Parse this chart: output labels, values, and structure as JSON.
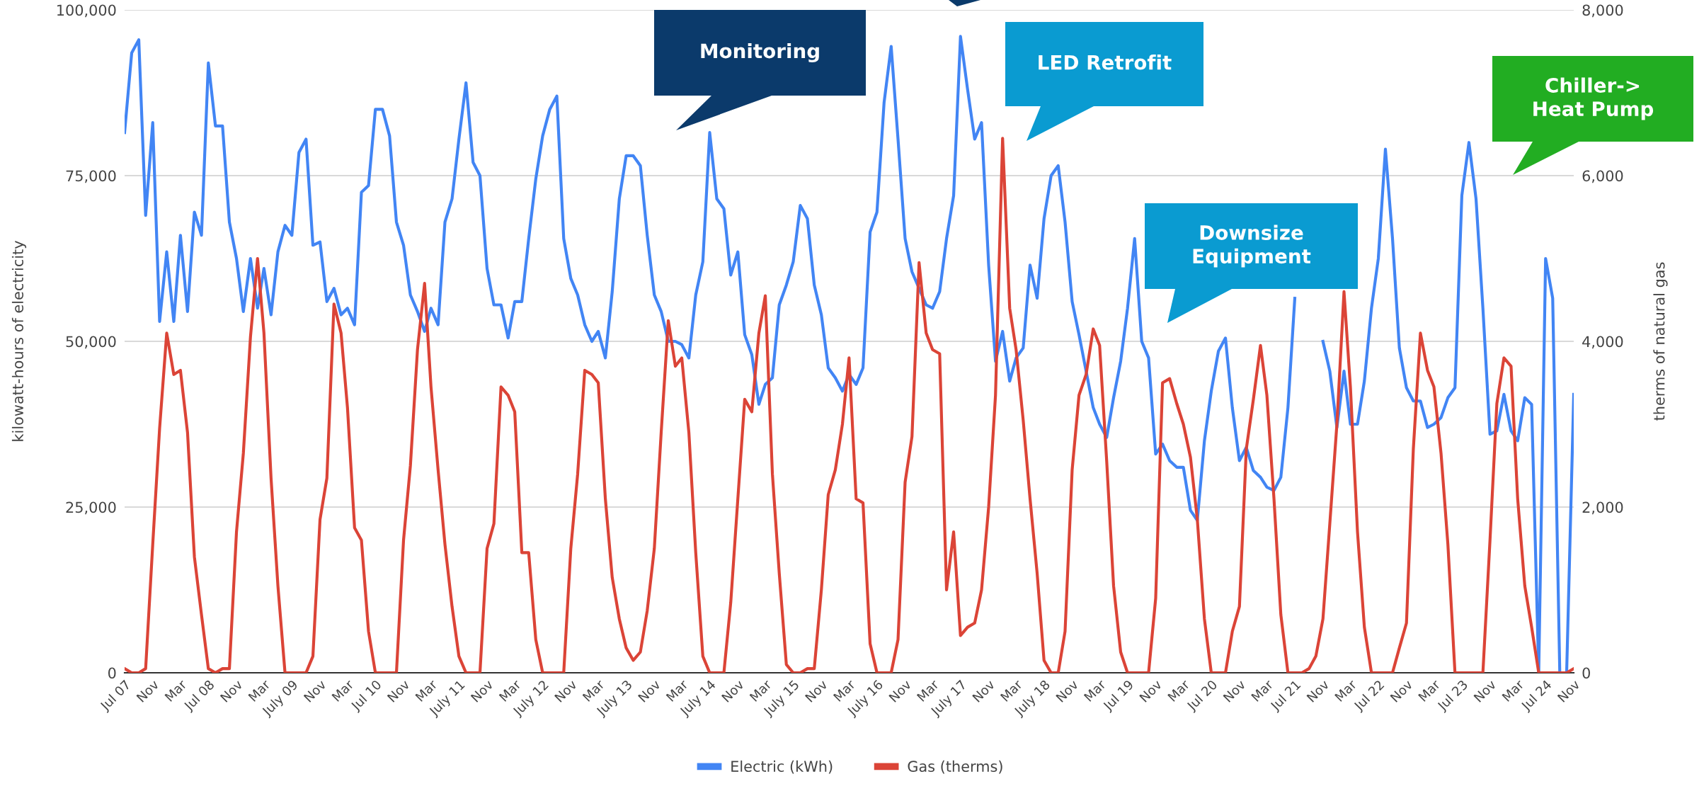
{
  "chart_data": {
    "type": "line",
    "xlabel": null,
    "ylabel": "kilowatt-hours of electricity",
    "y2label": "therms of natural gas",
    "x": [
      "2007-07",
      "2007-08",
      "2007-09",
      "2007-10",
      "2007-11",
      "2007-12",
      "2008-01",
      "2008-02",
      "2008-03",
      "2008-04",
      "2008-05",
      "2008-06",
      "2008-07",
      "2008-08",
      "2008-09",
      "2008-10",
      "2008-11",
      "2008-12",
      "2009-01",
      "2009-02",
      "2009-03",
      "2009-04",
      "2009-05",
      "2009-06",
      "2009-07",
      "2009-08",
      "2009-09",
      "2009-10",
      "2009-11",
      "2009-12",
      "2010-01",
      "2010-02",
      "2010-03",
      "2010-04",
      "2010-05",
      "2010-06",
      "2010-07",
      "2010-08",
      "2010-09",
      "2010-10",
      "2010-11",
      "2010-12",
      "2011-01",
      "2011-02",
      "2011-03",
      "2011-04",
      "2011-05",
      "2011-06",
      "2011-07",
      "2011-08",
      "2011-09",
      "2011-10",
      "2011-11",
      "2011-12",
      "2012-01",
      "2012-02",
      "2012-03",
      "2012-04",
      "2012-05",
      "2012-06",
      "2012-07",
      "2012-08",
      "2012-09",
      "2012-10",
      "2012-11",
      "2012-12",
      "2013-01",
      "2013-02",
      "2013-03",
      "2013-04",
      "2013-05",
      "2013-06",
      "2013-07",
      "2013-08",
      "2013-09",
      "2013-10",
      "2013-11",
      "2013-12",
      "2014-01",
      "2014-02",
      "2014-03",
      "2014-04",
      "2014-05",
      "2014-06",
      "2014-07",
      "2014-08",
      "2014-09",
      "2014-10",
      "2014-11",
      "2014-12",
      "2015-01",
      "2015-02",
      "2015-03",
      "2015-04",
      "2015-05",
      "2015-06",
      "2015-07",
      "2015-08",
      "2015-09",
      "2015-10",
      "2015-11",
      "2015-12",
      "2016-01",
      "2016-02",
      "2016-03",
      "2016-04",
      "2016-05",
      "2016-06",
      "2016-07",
      "2016-08",
      "2016-09",
      "2016-10",
      "2016-11",
      "2016-12",
      "2017-01",
      "2017-02",
      "2017-03",
      "2017-04",
      "2017-05",
      "2017-06",
      "2017-07",
      "2017-08",
      "2017-09",
      "2017-10",
      "2017-11",
      "2017-12",
      "2018-01",
      "2018-02",
      "2018-03",
      "2018-04",
      "2018-05",
      "2018-06",
      "2018-07",
      "2018-08",
      "2018-09",
      "2018-10",
      "2018-11",
      "2018-12",
      "2019-01",
      "2019-02",
      "2019-03",
      "2019-04",
      "2019-05",
      "2019-06",
      "2019-07",
      "2019-08",
      "2019-09",
      "2019-10",
      "2019-11",
      "2019-12",
      "2020-01",
      "2020-02",
      "2020-03",
      "2020-04",
      "2020-05",
      "2020-06",
      "2020-07",
      "2020-08",
      "2020-09",
      "2020-10",
      "2020-11",
      "2020-12",
      "2021-01",
      "2021-02",
      "2021-03",
      "2021-04",
      "2021-05",
      "2021-06",
      "2021-07",
      "2021-08",
      "2021-09",
      "2021-10",
      "2021-11",
      "2021-12",
      "2022-01",
      "2022-02",
      "2022-03",
      "2022-04",
      "2022-05",
      "2022-06",
      "2022-07",
      "2022-08",
      "2022-09",
      "2022-10",
      "2022-11",
      "2022-12",
      "2023-01",
      "2023-02",
      "2023-03",
      "2023-04",
      "2023-05",
      "2023-06",
      "2023-07",
      "2023-08",
      "2023-09",
      "2023-10",
      "2023-11",
      "2023-12",
      "2024-01",
      "2024-02",
      "2024-03",
      "2024-04",
      "2024-05",
      "2024-06",
      "2024-07",
      "2024-08",
      "2024-09",
      "2024-10",
      "2024-11"
    ],
    "series": [
      {
        "name": "Electric (kWh)",
        "color": "#4285f4",
        "axis": "y",
        "values": [
          81500,
          93500,
          95500,
          69000,
          83000,
          53000,
          63500,
          53000,
          66000,
          54500,
          69500,
          66000,
          92000,
          82500,
          82500,
          68000,
          62500,
          54500,
          62500,
          55000,
          61000,
          54000,
          63500,
          67500,
          66000,
          78500,
          80500,
          64500,
          65000,
          56000,
          58000,
          54000,
          55000,
          52500,
          72500,
          73500,
          85000,
          85000,
          81000,
          68000,
          64500,
          57000,
          54500,
          51500,
          55000,
          52500,
          68000,
          71500,
          80500,
          89000,
          77000,
          75000,
          61000,
          55500,
          55500,
          50500,
          56000,
          56000,
          65500,
          74500,
          81000,
          85000,
          87000,
          65500,
          59500,
          57000,
          52500,
          50000,
          51500,
          47500,
          57500,
          71500,
          78000,
          78000,
          76500,
          66000,
          57000,
          54500,
          50000,
          50000,
          49500,
          47500,
          57000,
          62000,
          81500,
          71500,
          70000,
          60000,
          63500,
          51000,
          48000,
          40500,
          43500,
          44500,
          55500,
          58500,
          62000,
          70500,
          68500,
          58500,
          54000,
          46000,
          44500,
          42500,
          45000,
          43500,
          46000,
          66500,
          69500,
          86000,
          94500,
          80500,
          65500,
          60500,
          58000,
          55500,
          55000,
          57500,
          65500,
          72000,
          96000,
          88000,
          80500,
          83000,
          61500,
          47000,
          51500,
          44000,
          47500,
          49000,
          61500,
          56500,
          68500,
          75000,
          76500,
          68000,
          56000,
          51000,
          45500,
          40000,
          37500,
          35500,
          41500,
          47000,
          55000,
          65500,
          50000,
          47500,
          33000,
          34500,
          32000,
          31000,
          31000,
          24500,
          23000,
          35000,
          42500,
          48500,
          50500,
          40000,
          32000,
          34000,
          30500,
          29500,
          28000,
          27500,
          29500,
          40000,
          56500,
          null,
          null,
          null,
          50000,
          45500,
          37000,
          45500,
          37500,
          37500,
          44000,
          55000,
          62500,
          79000,
          65500,
          49000,
          43000,
          41000,
          41000,
          37000,
          37500,
          38500,
          41500,
          43000,
          72000,
          80000,
          71500,
          55000,
          36000,
          36500,
          42000,
          36500,
          35000,
          41500,
          40500,
          0,
          62500,
          56500,
          0,
          0,
          42000
        ]
      },
      {
        "name": "Gas (therms)",
        "color": "#db4437",
        "axis": "y2",
        "values": [
          50,
          0,
          0,
          50,
          1550,
          2950,
          4100,
          3600,
          3650,
          2900,
          1400,
          700,
          50,
          0,
          50,
          50,
          1700,
          2650,
          4050,
          5000,
          4100,
          2350,
          1050,
          0,
          0,
          0,
          0,
          200,
          1850,
          2350,
          4450,
          4100,
          3200,
          1750,
          1600,
          500,
          0,
          0,
          0,
          0,
          1600,
          2500,
          3900,
          4700,
          3450,
          2450,
          1550,
          800,
          200,
          0,
          0,
          0,
          1500,
          1800,
          3450,
          3350,
          3150,
          1450,
          1450,
          400,
          0,
          0,
          0,
          0,
          1500,
          2400,
          3650,
          3600,
          3500,
          2100,
          1150,
          650,
          300,
          150,
          250,
          750,
          1500,
          2900,
          4250,
          3700,
          3800,
          2900,
          1450,
          200,
          0,
          0,
          0,
          850,
          2100,
          3300,
          3150,
          4100,
          4550,
          2400,
          1200,
          100,
          0,
          0,
          50,
          50,
          1000,
          2150,
          2450,
          3000,
          3800,
          2100,
          2050,
          350,
          0,
          0,
          0,
          400,
          2300,
          2850,
          4950,
          4100,
          3900,
          3850,
          1000,
          1700,
          450,
          550,
          600,
          1000,
          2000,
          3350,
          6450,
          4400,
          3900,
          3050,
          2100,
          1200,
          150,
          0,
          0,
          500,
          2450,
          3350,
          3600,
          4150,
          3950,
          2550,
          1050,
          250,
          0,
          0,
          0,
          0,
          900,
          3500,
          3550,
          3250,
          3000,
          2600,
          1850,
          650,
          0,
          0,
          0,
          500,
          800,
          2700,
          3300,
          3950,
          3350,
          2100,
          700,
          0,
          0,
          0,
          50,
          200,
          650,
          1800,
          3000,
          4600,
          3450,
          1700,
          550,
          0,
          0,
          0,
          0,
          300,
          600,
          2700,
          4100,
          3650,
          3450,
          2650,
          1550,
          0,
          0,
          0,
          0,
          0,
          1600,
          3250,
          3800,
          3700,
          2100,
          1050,
          550,
          0,
          0,
          0,
          0,
          0,
          50
        ]
      }
    ],
    "xlim": [
      "2007-07",
      "2024-11"
    ],
    "xticks": [
      {
        "value": "2007-07",
        "label": "Jul 07"
      },
      {
        "value": "2007-11",
        "label": "Nov"
      },
      {
        "value": "2008-03",
        "label": "Mar"
      },
      {
        "value": "2008-07",
        "label": "Jul 08"
      },
      {
        "value": "2008-11",
        "label": "Nov"
      },
      {
        "value": "2009-03",
        "label": "Mar"
      },
      {
        "value": "2009-07",
        "label": "July 09"
      },
      {
        "value": "2009-11",
        "label": "Nov"
      },
      {
        "value": "2010-03",
        "label": "Mar"
      },
      {
        "value": "2010-07",
        "label": "Jul 10"
      },
      {
        "value": "2010-11",
        "label": "Nov"
      },
      {
        "value": "2011-03",
        "label": "Mar"
      },
      {
        "value": "2011-07",
        "label": "July 11"
      },
      {
        "value": "2011-11",
        "label": "Nov"
      },
      {
        "value": "2012-03",
        "label": "Mar"
      },
      {
        "value": "2012-07",
        "label": "July 12"
      },
      {
        "value": "2012-11",
        "label": "Nov"
      },
      {
        "value": "2013-03",
        "label": "Mar"
      },
      {
        "value": "2013-07",
        "label": "July 13"
      },
      {
        "value": "2013-11",
        "label": "Nov"
      },
      {
        "value": "2014-03",
        "label": "Mar"
      },
      {
        "value": "2014-07",
        "label": "July 14"
      },
      {
        "value": "2014-11",
        "label": "Nov"
      },
      {
        "value": "2015-03",
        "label": "Mar"
      },
      {
        "value": "2015-07",
        "label": "July 15"
      },
      {
        "value": "2015-11",
        "label": "Nov"
      },
      {
        "value": "2016-03",
        "label": "Mar"
      },
      {
        "value": "2016-07",
        "label": "July 16"
      },
      {
        "value": "2016-11",
        "label": "Nov"
      },
      {
        "value": "2017-03",
        "label": "Mar"
      },
      {
        "value": "2017-07",
        "label": "July 17"
      },
      {
        "value": "2017-11",
        "label": "Nov"
      },
      {
        "value": "2018-03",
        "label": "Mar"
      },
      {
        "value": "2018-07",
        "label": "July 18"
      },
      {
        "value": "2018-11",
        "label": "Nov"
      },
      {
        "value": "2019-03",
        "label": "Mar"
      },
      {
        "value": "2019-07",
        "label": "Jul 19"
      },
      {
        "value": "2019-11",
        "label": "Nov"
      },
      {
        "value": "2020-03",
        "label": "Mar"
      },
      {
        "value": "2020-07",
        "label": "Jul 20"
      },
      {
        "value": "2020-11",
        "label": "Nov"
      },
      {
        "value": "2021-03",
        "label": "Mar"
      },
      {
        "value": "2021-07",
        "label": "Jul 21"
      },
      {
        "value": "2021-11",
        "label": "Nov"
      },
      {
        "value": "2022-03",
        "label": "Mar"
      },
      {
        "value": "2022-07",
        "label": "Jul 22"
      },
      {
        "value": "2022-11",
        "label": "Nov"
      },
      {
        "value": "2023-03",
        "label": "Mar"
      },
      {
        "value": "2023-07",
        "label": "Jul 23"
      },
      {
        "value": "2023-11",
        "label": "Nov"
      },
      {
        "value": "2024-03",
        "label": "Mar"
      },
      {
        "value": "2024-07",
        "label": "Jul 24"
      },
      {
        "value": "2024-11",
        "label": "Nov"
      }
    ],
    "ylim": [
      0,
      100000
    ],
    "yticks": [
      0,
      {
        "value": 25000,
        "label": "25,000"
      },
      {
        "value": 50000,
        "label": "50,000"
      },
      {
        "value": 75000,
        "label": "75,000"
      },
      {
        "value": 100000,
        "label": "100,000"
      }
    ],
    "y2lim": [
      0,
      8000
    ],
    "y2ticks": [
      0,
      {
        "value": 2000,
        "label": "2,000"
      },
      {
        "value": 4000,
        "label": "4,000"
      },
      {
        "value": 6000,
        "label": "6,000"
      },
      {
        "value": 8000,
        "label": "8,000"
      }
    ],
    "grid": "y",
    "legend": "bottom",
    "line_style": "solid",
    "annotations": [
      "Monitoring",
      "LED Retrofit",
      "Downsize\nEquipment",
      "Chiller->\nHeat Pump"
    ]
  }
}
